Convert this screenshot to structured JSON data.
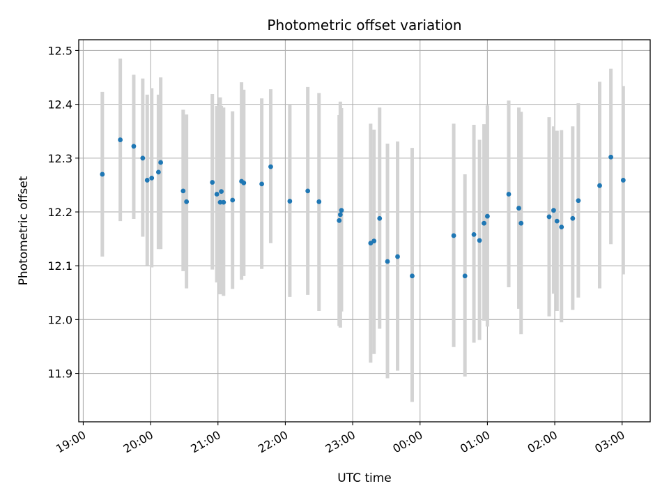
{
  "chart_data": {
    "type": "scatter",
    "title": "Photometric offset variation",
    "xlabel": "UTC time",
    "ylabel": "Photometric offset",
    "x_ticks": [
      "19:00",
      "20:00",
      "21:00",
      "22:00",
      "23:00",
      "00:00",
      "01:00",
      "02:00",
      "03:00"
    ],
    "y_ticks": [
      "11.9",
      "12.0",
      "12.1",
      "12.2",
      "12.3",
      "12.4",
      "12.5"
    ],
    "xlim": [
      "2000-01-01T18:56",
      "2000-01-02T03:25"
    ],
    "ylim": [
      11.81,
      12.52
    ],
    "grid": true,
    "colors": {
      "points": "#1f77b4",
      "errorbars": "#d3d3d3",
      "grid": "#b0b0b0"
    },
    "series": [
      {
        "x": [
          "2000-01-01T19:17",
          "2000-01-01T19:33",
          "2000-01-01T19:45",
          "2000-01-01T19:53",
          "2000-01-01T19:57",
          "2000-01-01T20:01",
          "2000-01-01T20:07",
          "2000-01-01T20:09",
          "2000-01-01T20:29",
          "2000-01-01T20:32",
          "2000-01-01T20:55",
          "2000-01-01T20:59",
          "2000-01-01T21:02",
          "2000-01-01T21:03",
          "2000-01-01T21:05",
          "2000-01-01T21:13",
          "2000-01-01T21:21",
          "2000-01-01T21:23",
          "2000-01-01T21:39",
          "2000-01-01T21:47",
          "2000-01-01T22:04",
          "2000-01-01T22:20",
          "2000-01-01T22:30",
          "2000-01-01T22:48",
          "2000-01-01T22:49",
          "2000-01-01T22:50",
          "2000-01-01T23:16",
          "2000-01-01T23:19",
          "2000-01-01T23:24",
          "2000-01-01T23:31",
          "2000-01-01T23:40",
          "2000-01-01T23:53",
          "2000-01-02T00:30",
          "2000-01-02T00:40",
          "2000-01-02T00:48",
          "2000-01-02T00:53",
          "2000-01-02T00:57",
          "2000-01-02T01:00",
          "2000-01-02T01:19",
          "2000-01-02T01:28",
          "2000-01-02T01:30",
          "2000-01-02T01:55",
          "2000-01-02T01:59",
          "2000-01-02T02:02",
          "2000-01-02T02:06",
          "2000-01-02T02:16",
          "2000-01-02T02:21",
          "2000-01-02T02:40",
          "2000-01-02T02:50",
          "2000-01-02T03:01"
        ],
        "y": [
          12.27,
          12.334,
          12.322,
          12.3,
          12.259,
          12.263,
          12.274,
          12.292,
          12.239,
          12.219,
          12.255,
          12.233,
          12.218,
          12.238,
          12.218,
          12.222,
          12.257,
          12.254,
          12.252,
          12.284,
          12.22,
          12.239,
          12.219,
          12.184,
          12.195,
          12.203,
          12.142,
          12.146,
          12.188,
          12.108,
          12.117,
          12.081,
          12.156,
          12.081,
          12.158,
          12.147,
          12.179,
          12.192,
          12.233,
          12.207,
          12.179,
          12.191,
          12.203,
          12.183,
          12.172,
          12.188,
          12.221,
          12.249,
          12.302,
          12.259
        ],
        "err_low": [
          12.117,
          12.183,
          12.187,
          12.154,
          12.101,
          12.097,
          12.131,
          12.131,
          12.09,
          12.058,
          12.093,
          12.069,
          12.047,
          12.079,
          12.044,
          12.057,
          12.074,
          12.081,
          12.094,
          12.142,
          12.042,
          12.046,
          12.016,
          11.988,
          11.985,
          12.015,
          11.92,
          11.936,
          11.983,
          11.891,
          11.905,
          11.847,
          11.949,
          11.894,
          11.957,
          11.962,
          11.998,
          11.987,
          12.06,
          12.02,
          11.973,
          12.006,
          12.048,
          12.016,
          11.995,
          12.018,
          12.041,
          12.058,
          12.14,
          12.084
        ],
        "err_high": [
          12.423,
          12.485,
          12.455,
          12.448,
          12.418,
          12.43,
          12.418,
          12.45,
          12.39,
          12.381,
          12.419,
          12.397,
          12.413,
          12.397,
          12.394,
          12.387,
          12.441,
          12.427,
          12.411,
          12.428,
          12.4,
          12.432,
          12.421,
          12.38,
          12.405,
          12.393,
          12.364,
          12.353,
          12.394,
          12.327,
          12.331,
          12.319,
          12.364,
          12.27,
          12.362,
          12.334,
          12.363,
          12.398,
          12.407,
          12.394,
          12.386,
          12.376,
          12.359,
          12.351,
          12.352,
          12.359,
          12.402,
          12.442,
          12.466,
          12.434
        ]
      }
    ]
  }
}
